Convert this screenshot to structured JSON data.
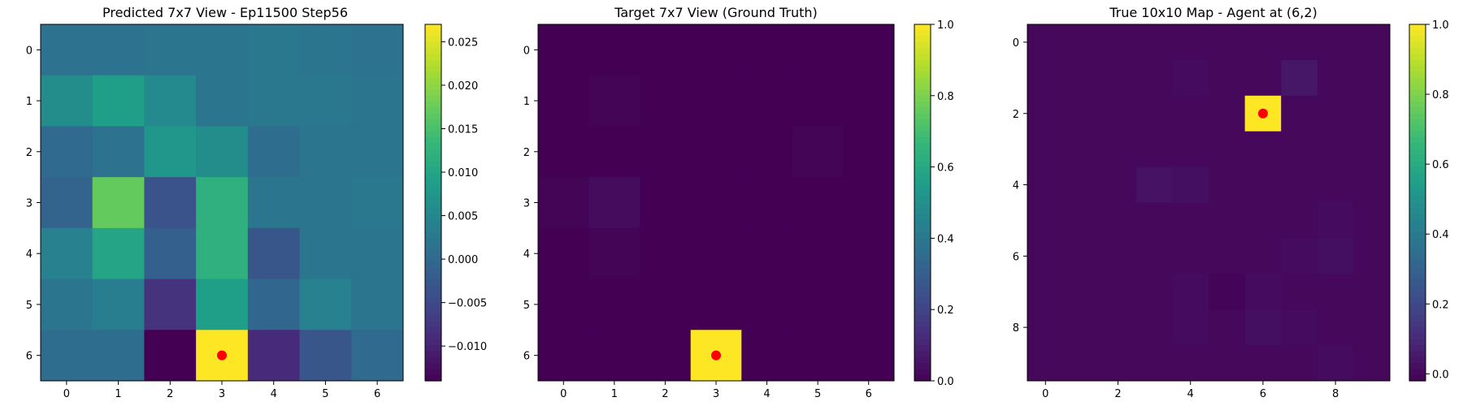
{
  "chart_data": [
    {
      "type": "heatmap",
      "title": "Predicted 7x7 View - Ep11500 Step56",
      "rows": 7,
      "cols": 7,
      "x_ticks": [
        0,
        1,
        2,
        3,
        4,
        5,
        6
      ],
      "y_ticks": [
        0,
        1,
        2,
        3,
        4,
        5,
        6
      ],
      "values": [
        [
          0.0015,
          0.0015,
          0.002,
          0.002,
          0.0025,
          0.002,
          0.0015
        ],
        [
          0.006,
          0.009,
          0.0055,
          0.002,
          0.0025,
          0.0025,
          0.002
        ],
        [
          0.0,
          0.0015,
          0.0075,
          0.006,
          0.0005,
          0.002,
          0.002
        ],
        [
          -0.001,
          0.017,
          -0.0035,
          0.012,
          0.002,
          0.002,
          0.0025
        ],
        [
          0.004,
          0.01,
          -0.0015,
          0.012,
          -0.003,
          0.002,
          0.002
        ],
        [
          0.002,
          0.0035,
          -0.008,
          0.009,
          -0.0005,
          0.004,
          0.002
        ],
        [
          0.0005,
          0.0005,
          -0.014,
          0.027,
          -0.009,
          -0.003,
          0.0
        ]
      ],
      "vmin": -0.014,
      "vmax": 0.027,
      "colorbar_ticks": [
        0.025,
        0.02,
        0.015,
        0.01,
        0.005,
        0.0,
        -0.005,
        -0.01
      ],
      "colorbar_labels": [
        "0.025",
        "0.020",
        "0.015",
        "0.010",
        "0.005",
        "0.000",
        "−0.005",
        "−0.010"
      ],
      "marker": {
        "x": 3,
        "y": 6,
        "color": "#ff0000"
      }
    },
    {
      "type": "heatmap",
      "title": "Target 7x7 View (Ground Truth)",
      "rows": 7,
      "cols": 7,
      "x_ticks": [
        0,
        1,
        2,
        3,
        4,
        5,
        6
      ],
      "y_ticks": [
        0,
        1,
        2,
        3,
        4,
        5,
        6
      ],
      "values": [
        [
          0,
          0,
          0,
          0,
          0,
          0,
          0
        ],
        [
          0,
          0.01,
          0,
          0,
          0,
          0,
          0
        ],
        [
          0,
          0,
          0,
          0,
          0,
          0.01,
          0
        ],
        [
          0.01,
          0.03,
          0,
          0,
          0,
          0,
          0
        ],
        [
          0,
          0.01,
          0,
          0,
          0,
          0,
          0
        ],
        [
          0,
          0,
          0,
          0,
          0,
          0,
          0
        ],
        [
          0,
          0,
          0,
          1.0,
          0,
          0,
          0
        ]
      ],
      "vmin": 0,
      "vmax": 1,
      "colorbar_ticks": [
        1.0,
        0.8,
        0.6,
        0.4,
        0.2,
        0.0
      ],
      "colorbar_labels": [
        "1.0",
        "0.8",
        "0.6",
        "0.4",
        "0.2",
        "0.0"
      ],
      "marker": {
        "x": 3,
        "y": 6,
        "color": "#ff0000"
      }
    },
    {
      "type": "heatmap",
      "title": "True 10x10 Map - Agent at (6,2)",
      "rows": 10,
      "cols": 10,
      "x_ticks": [
        0,
        2,
        4,
        6,
        8
      ],
      "y_ticks": [
        0,
        2,
        4,
        6,
        8
      ],
      "values": [
        [
          0,
          0,
          0,
          0,
          0,
          0,
          0,
          0,
          0,
          0
        ],
        [
          0,
          0,
          0,
          0,
          0.01,
          0,
          0,
          0.04,
          0,
          0
        ],
        [
          0,
          0,
          0,
          0,
          0,
          0,
          1.0,
          0,
          0,
          0
        ],
        [
          0,
          0,
          0,
          0,
          0,
          0,
          0,
          0,
          0,
          0
        ],
        [
          0,
          0,
          0,
          0.03,
          0.02,
          0,
          0,
          0,
          0,
          0
        ],
        [
          0,
          0,
          0,
          0,
          0,
          0,
          0,
          0,
          0.01,
          0
        ],
        [
          0,
          0,
          0,
          0,
          0,
          0,
          0,
          0.01,
          0.02,
          0
        ],
        [
          0,
          0,
          0,
          0,
          0.01,
          -0.01,
          0.01,
          0,
          0,
          0
        ],
        [
          0,
          0,
          0,
          0,
          0.01,
          0,
          0.02,
          0.01,
          0,
          0
        ],
        [
          0,
          0,
          0,
          0,
          0,
          0,
          0,
          0,
          0.01,
          0
        ]
      ],
      "vmin": -0.02,
      "vmax": 1.0,
      "colorbar_ticks": [
        1.0,
        0.8,
        0.6,
        0.4,
        0.2,
        0.0
      ],
      "colorbar_labels": [
        "1.0",
        "0.8",
        "0.6",
        "0.4",
        "0.2",
        "0.0"
      ],
      "marker": {
        "x": 6,
        "y": 2,
        "color": "#ff0000"
      }
    }
  ]
}
